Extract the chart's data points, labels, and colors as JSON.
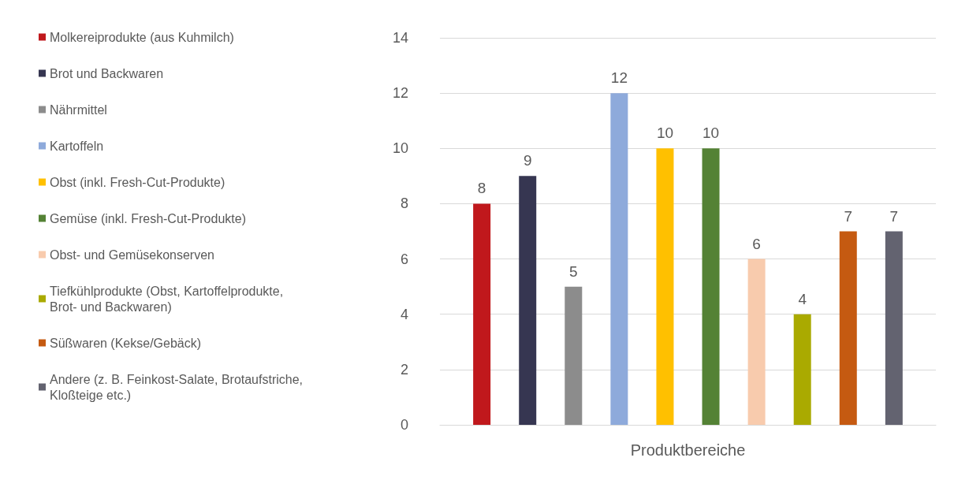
{
  "chart_data": {
    "type": "bar",
    "xlabel": "Produktbereiche",
    "categories": [
      null
    ],
    "series": [
      {
        "name": "Molkereiprodukte (aus Kuhmilch)",
        "color": "#c0181c",
        "values": [
          8
        ]
      },
      {
        "name": "Brot und Backwaren",
        "color": "#363651",
        "values": [
          9
        ]
      },
      {
        "name": "Nährmittel",
        "color": "#8c8c8c",
        "values": [
          5
        ]
      },
      {
        "name": "Kartoffeln",
        "color": "#8eaadb",
        "values": [
          12
        ]
      },
      {
        "name": "Obst (inkl. Fresh-Cut-Produkte)",
        "color": "#ffc000",
        "values": [
          10
        ]
      },
      {
        "name": "Gemüse (inkl. Fresh-Cut-Produkte)",
        "color": "#548235",
        "values": [
          10
        ]
      },
      {
        "name": "Obst- und Gemüsekonserven",
        "color": "#f8cbad",
        "values": [
          6
        ]
      },
      {
        "name": "Tiefkühlprodukte (Obst, Kartoffelprodukte, Brot- und Backwaren)",
        "color": "#aaaa00",
        "values": [
          4
        ]
      },
      {
        "name": "Süßwaren (Kekse/Gebäck)",
        "color": "#c55a11",
        "values": [
          7
        ]
      },
      {
        "name": "Andere (z. B. Feinkost-Salate, Brotaufstriche, Kloßteige etc.)",
        "color": "#636370",
        "values": [
          7
        ]
      }
    ],
    "ylim": [
      0,
      14
    ],
    "yticks": [
      0,
      2,
      4,
      6,
      8,
      10,
      12,
      14
    ],
    "grid": "y",
    "legend": "left",
    "data_labels": true
  }
}
